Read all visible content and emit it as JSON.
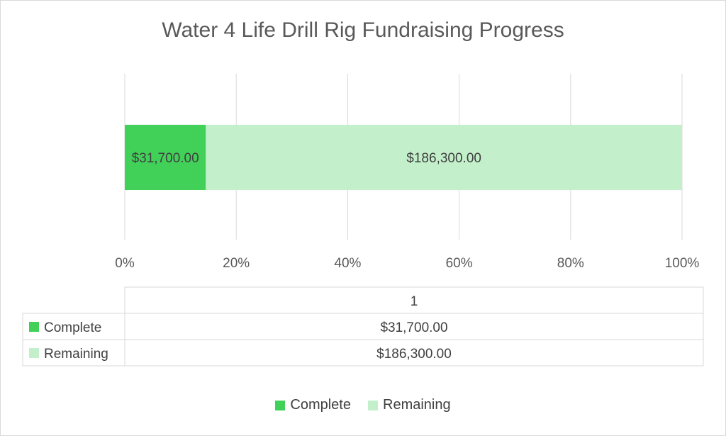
{
  "chart_data": {
    "type": "bar",
    "orientation": "horizontal",
    "stacking": "percent",
    "title": "Water 4 Life Drill Rig Fundraising Progress",
    "categories": [
      "1"
    ],
    "x_tick_labels": [
      "0%",
      "20%",
      "40%",
      "60%",
      "80%",
      "100%"
    ],
    "xlim": [
      0,
      100
    ],
    "grid": true,
    "legend_position": "bottom",
    "series": [
      {
        "name": "Complete",
        "values": [
          31700
        ],
        "label": "$31,700.00",
        "color": "#41d158"
      },
      {
        "name": "Remaining",
        "values": [
          186300
        ],
        "label": "$186,300.00",
        "color": "#c3f0ca"
      }
    ],
    "data_table": {
      "header": "1",
      "rows": [
        {
          "name": "Complete",
          "value": "$31,700.00"
        },
        {
          "name": "Remaining",
          "value": "$186,300.00"
        }
      ]
    }
  }
}
